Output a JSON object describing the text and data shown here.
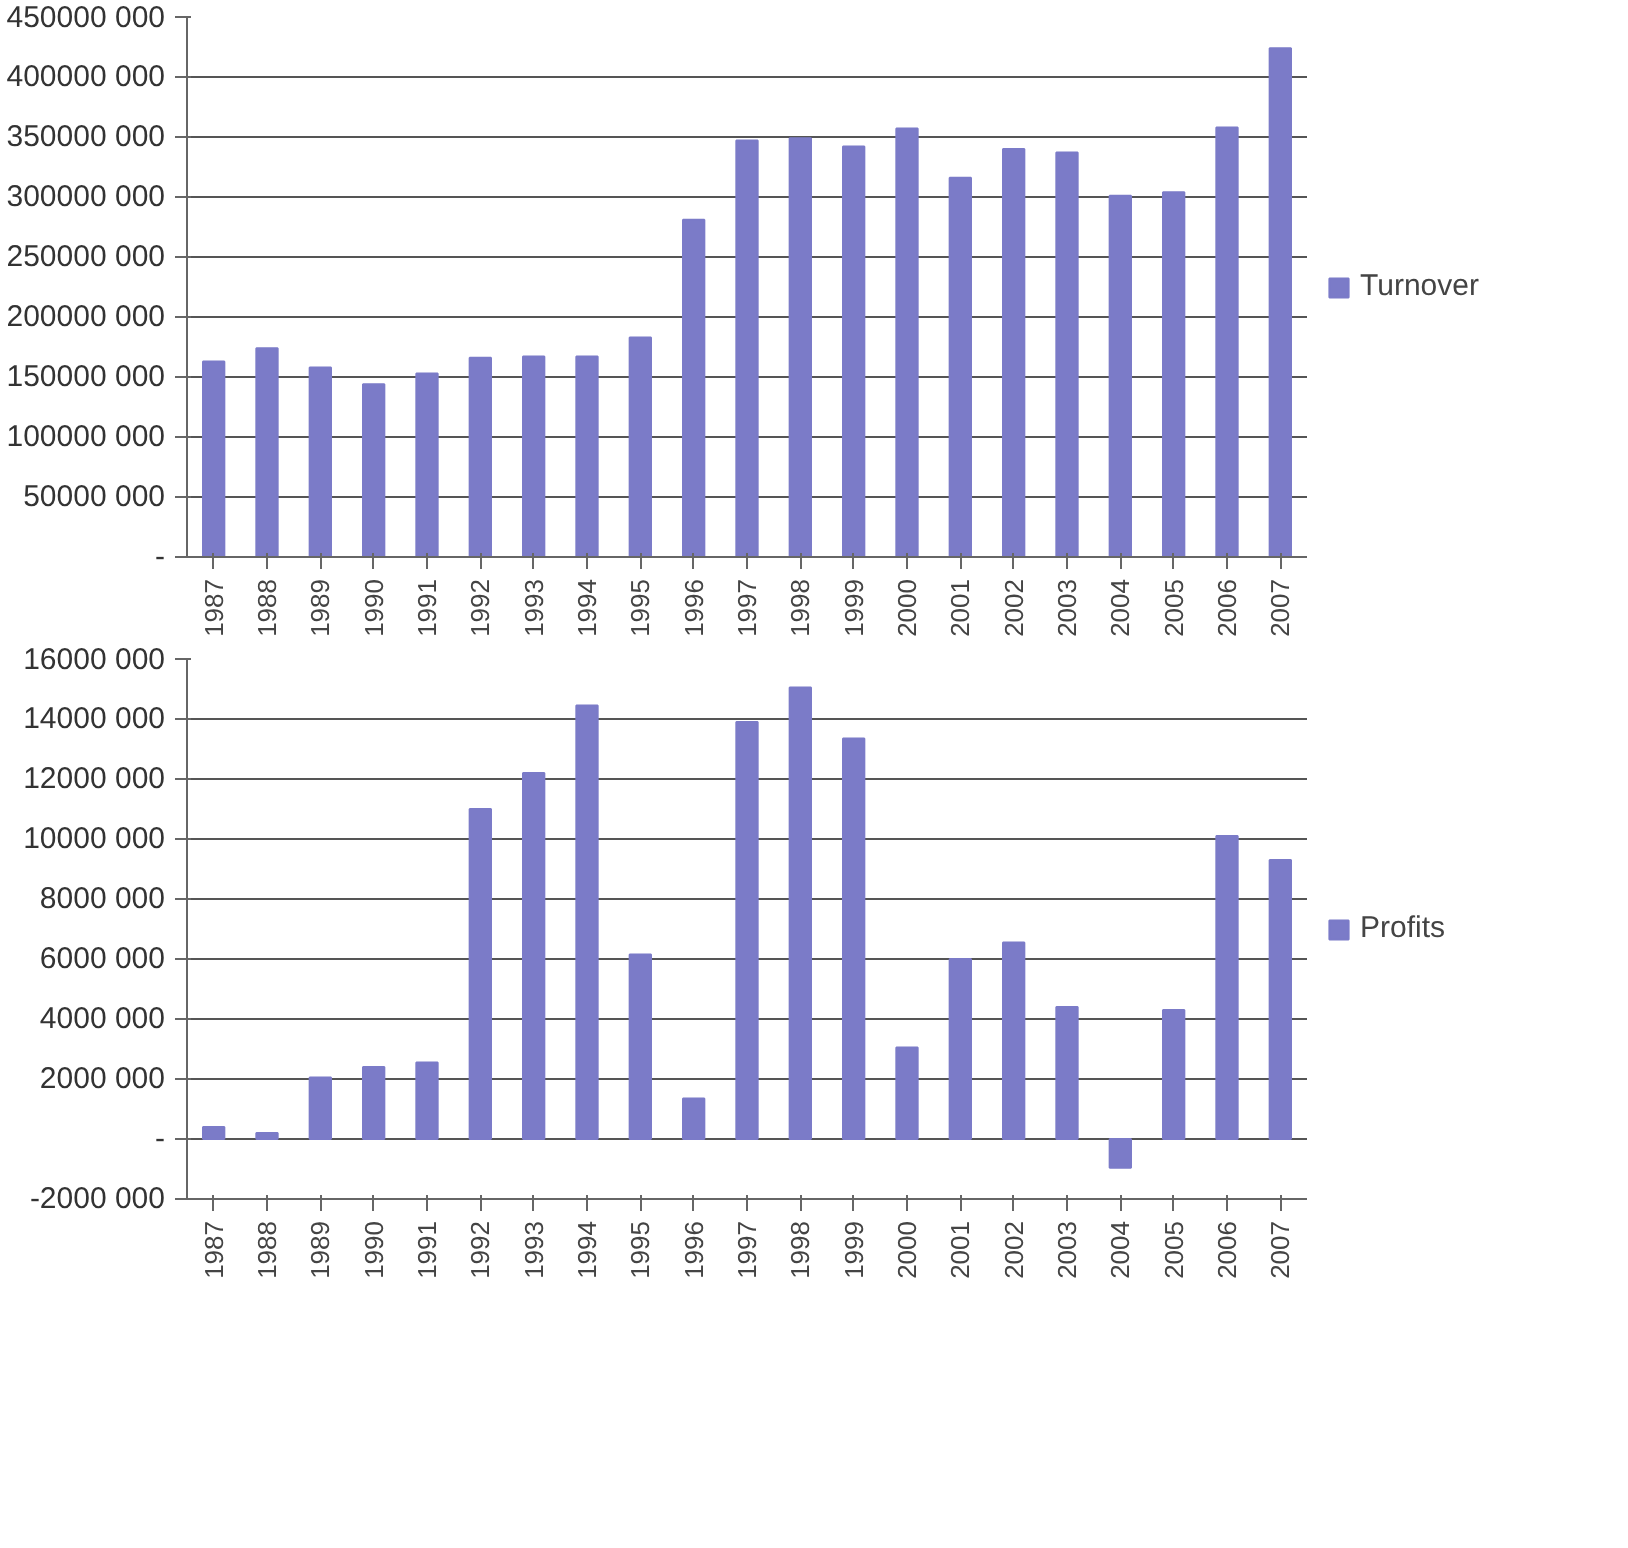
{
  "chart_data": [
    {
      "type": "bar",
      "categories": [
        "1987",
        "1988",
        "1989",
        "1990",
        "1991",
        "1992",
        "1993",
        "1994",
        "1995",
        "1996",
        "1997",
        "1998",
        "1999",
        "2000",
        "2001",
        "2002",
        "2003",
        "2004",
        "2005",
        "2006",
        "2007"
      ],
      "series": [
        {
          "name": "Turnover",
          "color": "#7b7bc8",
          "values": [
            163000000,
            174000000,
            158000000,
            144000000,
            153000000,
            166000000,
            167000000,
            167000000,
            183000000,
            281000000,
            347000000,
            349000000,
            342000000,
            357000000,
            316000000,
            340000000,
            337000000,
            301000000,
            304000000,
            358000000,
            424000000
          ]
        }
      ],
      "ylim": [
        0,
        450000000
      ],
      "yticks": [
        {
          "value": 0,
          "label": "-"
        },
        {
          "value": 50000000,
          "label": "50000 000"
        },
        {
          "value": 100000000,
          "label": "100000 000"
        },
        {
          "value": 150000000,
          "label": "150000 000"
        },
        {
          "value": 200000000,
          "label": "200000 000"
        },
        {
          "value": 250000000,
          "label": "250000 000"
        },
        {
          "value": 300000000,
          "label": "300000 000"
        },
        {
          "value": 350000000,
          "label": "350000 000"
        },
        {
          "value": 400000000,
          "label": "400000 000"
        },
        {
          "value": 450000000,
          "label": "450000 000"
        }
      ],
      "grid": "y",
      "legend": "right"
    },
    {
      "type": "bar",
      "categories": [
        "1987",
        "1988",
        "1989",
        "1990",
        "1991",
        "1992",
        "1993",
        "1994",
        "1995",
        "1996",
        "1997",
        "1998",
        "1999",
        "2000",
        "2001",
        "2002",
        "2003",
        "2004",
        "2005",
        "2006",
        "2007"
      ],
      "series": [
        {
          "name": "Profits",
          "color": "#7b7bc8",
          "values": [
            400000,
            200000,
            2050000,
            2400000,
            2550000,
            11000000,
            12200000,
            14450000,
            6150000,
            1350000,
            13900000,
            15050000,
            13350000,
            3050000,
            6000000,
            6550000,
            4400000,
            -960000,
            4300000,
            10100000,
            9300000
          ]
        }
      ],
      "ylim": [
        -2000000,
        16000000
      ],
      "yticks": [
        {
          "value": -2000000,
          "label": "-2000 000"
        },
        {
          "value": 0,
          "label": "-"
        },
        {
          "value": 2000000,
          "label": "2000 000"
        },
        {
          "value": 4000000,
          "label": "4000 000"
        },
        {
          "value": 6000000,
          "label": "6000 000"
        },
        {
          "value": 8000000,
          "label": "8000 000"
        },
        {
          "value": 10000000,
          "label": "10000 000"
        },
        {
          "value": 12000000,
          "label": "12000 000"
        },
        {
          "value": 14000000,
          "label": "14000 000"
        },
        {
          "value": 16000000,
          "label": "16000 000"
        }
      ],
      "grid": "y",
      "legend": "right"
    }
  ]
}
